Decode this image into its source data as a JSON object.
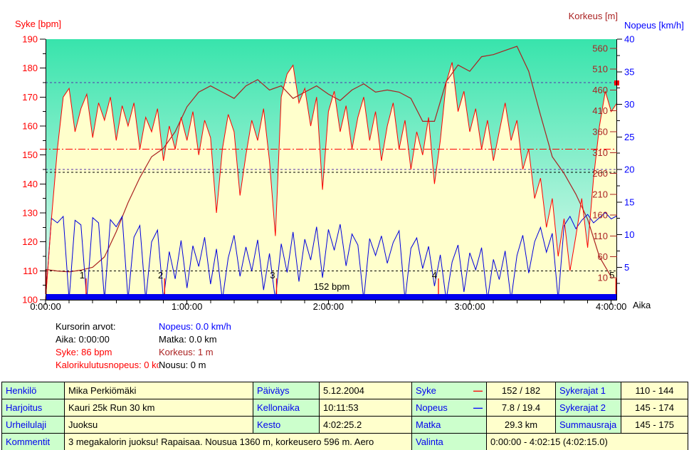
{
  "cursor_values": {
    "title": "Kursorin arvot:",
    "aika": "Aika: 0:00:00",
    "syke": "Syke: 86 bpm",
    "kalorikulutusnopeus": "Kalorikulutusnopeus: 0 kca",
    "nopeus": "Nopeus: 0.0 km/h",
    "matka": "Matka: 0.0 km",
    "korkeus": "Korkeus: 1 m",
    "nousu": "Nousu: 0 m"
  },
  "table": {
    "henkilo": {
      "label": "Henkilö",
      "value": "Mika Perkiömäki"
    },
    "harjoitus": {
      "label": "Harjoitus",
      "value": "Kauri 25k Run 30 km"
    },
    "urheilulaji": {
      "label": "Urheilulaji",
      "value": "Juoksu"
    },
    "kommentit": {
      "label": "Kommentit",
      "value": "3 megakalorin juoksu! Rapaisaa. Nousua 1360 m, korkeusero 596 m. Aero"
    },
    "paivays": {
      "label": "Päiväys",
      "value": "5.12.2004"
    },
    "kellonaika": {
      "label": "Kellonaika",
      "value": "10:11:53"
    },
    "kesto": {
      "label": "Kesto",
      "value": "4:02:25.2"
    },
    "syke": {
      "label": "Syke",
      "dash": "—",
      "value": "152 / 182"
    },
    "nopeus": {
      "label": "Nopeus",
      "dash": "—",
      "value": "7.8 / 19.4"
    },
    "matka": {
      "label": "Matka",
      "value": "29.3 km"
    },
    "sykerajat1": {
      "label": "Sykerajat 1",
      "value": "110 - 144"
    },
    "sykerajat2": {
      "label": "Sykerajat 2",
      "value": "145 - 174"
    },
    "summausraja": {
      "label": "Summausraja",
      "value": "145 - 175"
    },
    "valinta": {
      "label": "Valinta",
      "value": "0:00:00 - 4:02:15 (4:02:15.0)"
    }
  },
  "chart_data": {
    "type": "line",
    "plot": {
      "bg_top": "#38e4ac",
      "bg_bottom": "#e9fbf2",
      "hr_fill": "#ffffcc"
    },
    "x_axis": {
      "title": "Aika",
      "min": 0,
      "max": 242.5,
      "minor_step": 10,
      "major_step": 60,
      "labels": [
        {
          "t": 0,
          "text": "0:00:00"
        },
        {
          "t": 60,
          "text": "1:00:00"
        },
        {
          "t": 120,
          "text": "2:00:00"
        },
        {
          "t": 180,
          "text": "3:00:00"
        },
        {
          "t": 240,
          "text": "4:00:00"
        }
      ]
    },
    "axes": {
      "syke": {
        "title": "Syke [bpm]",
        "color": "#ff0000",
        "min": 100,
        "max": 190,
        "ticks": [
          190,
          180,
          170,
          160,
          150,
          140,
          130,
          120,
          110,
          100
        ],
        "minor_step": 5
      },
      "korkeus": {
        "title": "Korkeus [m]",
        "color": "#aa2222",
        "min": -43,
        "max": 582,
        "ticks": [
          560,
          510,
          460,
          410,
          360,
          310,
          260,
          210,
          160,
          110,
          60,
          10
        ]
      },
      "nopeus": {
        "title": "Nopeus [km/h]",
        "color": "#0000ff",
        "min": 0,
        "max": 40,
        "ticks": [
          40,
          35,
          30,
          25,
          20,
          15,
          10,
          5
        ],
        "minor_step": 2.5
      }
    },
    "reference_lines": [
      {
        "axis": "syke",
        "value": 175,
        "color": "#5533aa",
        "style": "dashed"
      },
      {
        "axis": "syke",
        "value": 152,
        "color": "#ff0000",
        "style": "dashdot",
        "label": "152 bpm"
      },
      {
        "axis": "syke",
        "value": 145,
        "color": "#5533aa",
        "style": "dashed"
      },
      {
        "axis": "syke",
        "value": 144,
        "color": "#000000",
        "style": "dashed"
      },
      {
        "axis": "syke",
        "value": 110,
        "color": "#000000",
        "style": "dashed"
      }
    ],
    "series": [
      {
        "name": "Syke",
        "axis": "syke",
        "color": "#ff0000",
        "t_step": 2.5,
        "values": [
          86,
          128,
          152,
          170,
          173,
          158,
          166,
          171,
          156,
          168,
          162,
          170,
          155,
          167,
          160,
          168,
          152,
          163,
          158,
          166,
          148,
          160,
          152,
          163,
          155,
          165,
          150,
          162,
          156,
          130,
          152,
          164,
          158,
          136,
          150,
          162,
          155,
          166,
          148,
          122,
          170,
          178,
          181,
          168,
          173,
          160,
          170,
          138,
          165,
          172,
          158,
          167,
          152,
          163,
          170,
          155,
          165,
          148,
          160,
          168,
          152,
          162,
          145,
          158,
          150,
          163,
          140,
          155,
          175,
          182,
          165,
          172,
          158,
          166,
          152,
          162,
          148,
          158,
          168,
          155,
          162,
          145,
          152,
          135,
          142,
          125,
          135,
          115,
          128,
          110,
          122,
          135,
          118,
          142,
          160,
          172,
          165,
          168
        ]
      },
      {
        "name": "Korkeus",
        "axis": "korkeus",
        "color": "#aa2222",
        "t_step": 5,
        "values": [
          30,
          26,
          24,
          28,
          35,
          60,
          120,
          190,
          250,
          300,
          320,
          360,
          420,
          455,
          470,
          455,
          440,
          470,
          485,
          460,
          470,
          440,
          455,
          470,
          450,
          435,
          460,
          475,
          455,
          460,
          455,
          440,
          385,
          385,
          480,
          520,
          505,
          540,
          545,
          555,
          565,
          505,
          400,
          300,
          260,
          210,
          150,
          60,
          12
        ]
      },
      {
        "name": "Nopeus",
        "axis": "nopeus",
        "color": "#0000dd",
        "t_step": 2.5,
        "values": [
          0,
          12.5,
          11.8,
          12.8,
          0,
          12.2,
          11.5,
          0,
          12.6,
          11.8,
          0,
          12.3,
          11.2,
          12.8,
          0,
          9.6,
          11.4,
          0,
          8.9,
          10.7,
          0,
          7.4,
          3.2,
          9.1,
          1.8,
          8.3,
          5.1,
          9.6,
          2.4,
          7.8,
          0,
          6.4,
          9.9,
          3.6,
          8.1,
          4.4,
          9.2,
          1.5,
          7.1,
          0,
          8.6,
          4.2,
          10.4,
          2.8,
          9.3,
          6.1,
          11.2,
          3.4,
          10.8,
          7.6,
          11.6,
          5.2,
          10.1,
          8.4,
          0,
          9.4,
          6.8,
          9.8,
          5.6,
          8.8,
          10.6,
          0,
          7.9,
          9.5,
          4.8,
          8.2,
          2.1,
          6.9,
          0,
          5.8,
          8.4,
          1.2,
          7.2,
          4.6,
          8.0,
          0,
          6.2,
          3.1,
          7.5,
          0,
          6.8,
          9.9,
          4.1,
          8.9,
          11.1,
          7.3,
          10.2,
          0,
          11.4,
          12.8,
          10.9,
          12.2,
          13.1,
          11.8,
          12.6,
          13.4,
          12.4,
          12.9
        ]
      }
    ],
    "lap_markers": [
      {
        "t": 17.2,
        "label": "1"
      },
      {
        "t": 50.5,
        "label": "2"
      },
      {
        "t": 98,
        "label": "3"
      },
      {
        "t": 166.7,
        "label": "4"
      },
      {
        "t": 242,
        "label": "5"
      }
    ],
    "selection_bar": {
      "from": 0,
      "to": 242.5,
      "color": "#0000ee"
    },
    "cursor": {
      "t": 0,
      "color": "#ff0000"
    },
    "right_edge_marker": {
      "axis": "syke",
      "value": 175,
      "color": "#ff0000"
    }
  }
}
